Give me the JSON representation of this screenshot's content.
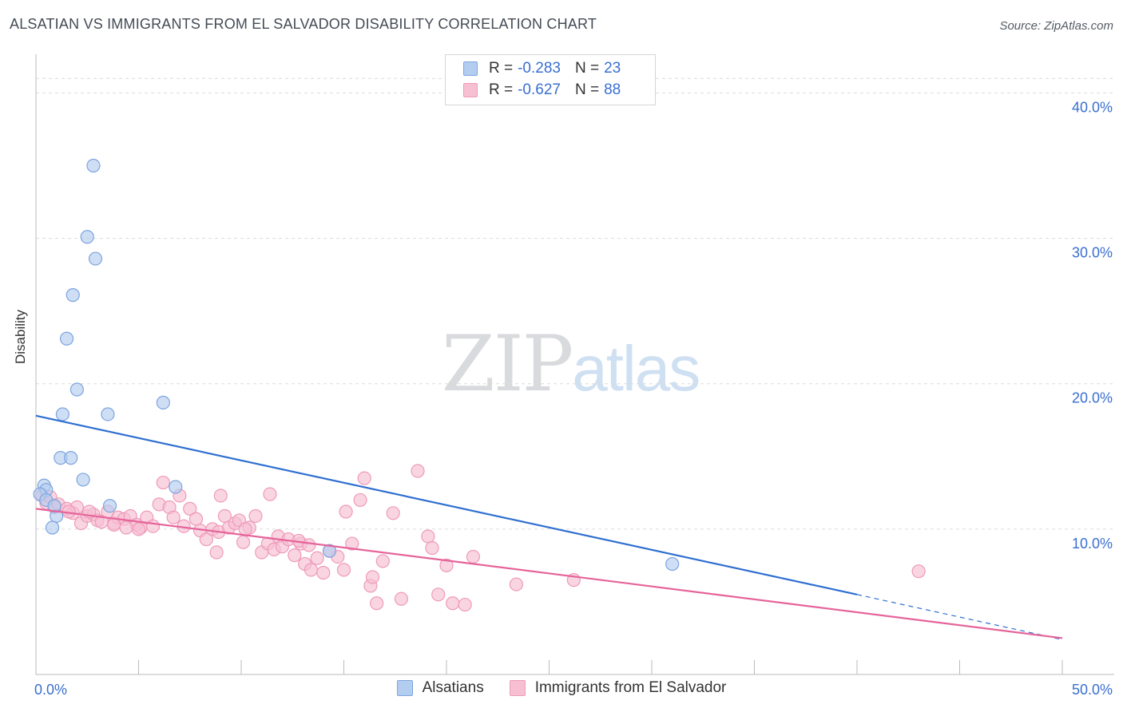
{
  "title": "ALSATIAN VS IMMIGRANTS FROM EL SALVADOR DISABILITY CORRELATION CHART",
  "source": "Source: ZipAtlas.com",
  "watermark": {
    "zip": "ZIP",
    "atlas": "atlas"
  },
  "legend": {
    "series1": {
      "r_label": "R =",
      "r_value": "-0.283",
      "n_label": "N =",
      "n_value": "23"
    },
    "series2": {
      "r_label": "R =",
      "r_value": "-0.627",
      "n_label": "N =",
      "n_value": "88"
    }
  },
  "bottom_legend": {
    "series1": "Alsatians",
    "series2": "Immigrants from El Salvador"
  },
  "colors": {
    "blue_fill": "#b3cdf0",
    "blue_stroke": "#7da5dd",
    "blue_line": "#2f6fd0",
    "pink_fill": "#f6bfd2",
    "pink_stroke": "#ef9ab8",
    "pink_line": "#e5649a",
    "tick_label": "#3a6fd0",
    "grid": "#dcdcdc"
  },
  "chart_data": {
    "type": "scatter",
    "title": "ALSATIAN VS IMMIGRANTS FROM EL SALVADOR DISABILITY CORRELATION CHART",
    "xlabel": "",
    "ylabel": "Disability",
    "xlim": [
      0,
      50
    ],
    "ylim": [
      0,
      42
    ],
    "x_tick_labels": [
      {
        "value": 0,
        "label": "0.0%"
      },
      {
        "value": 50,
        "label": "50.0%"
      }
    ],
    "y_tick_labels": [
      {
        "value": 10,
        "label": "10.0%"
      },
      {
        "value": 20,
        "label": "20.0%"
      },
      {
        "value": 30,
        "label": "30.0%"
      },
      {
        "value": 40,
        "label": "40.0%"
      }
    ],
    "series": [
      {
        "name": "Alsatians",
        "points": [
          [
            2.8,
            35.0
          ],
          [
            2.5,
            30.1
          ],
          [
            2.9,
            28.6
          ],
          [
            1.8,
            26.1
          ],
          [
            1.5,
            23.1
          ],
          [
            2.0,
            19.6
          ],
          [
            6.2,
            18.7
          ],
          [
            1.3,
            17.9
          ],
          [
            3.5,
            17.9
          ],
          [
            1.2,
            14.9
          ],
          [
            1.7,
            14.9
          ],
          [
            2.3,
            13.4
          ],
          [
            0.4,
            13.0
          ],
          [
            0.5,
            12.7
          ],
          [
            6.8,
            12.9
          ],
          [
            3.6,
            11.6
          ],
          [
            1.0,
            10.9
          ],
          [
            0.8,
            10.1
          ],
          [
            14.3,
            8.5
          ],
          [
            31.0,
            7.6
          ],
          [
            0.2,
            12.4
          ],
          [
            0.5,
            12.0
          ],
          [
            0.9,
            11.6
          ]
        ],
        "trend": {
          "x": [
            0,
            40
          ],
          "y": [
            17.8,
            5.5
          ],
          "dashed_extension": {
            "x": [
              40,
              50
            ],
            "y": [
              5.5,
              2.4
            ]
          }
        }
      },
      {
        "name": "Immigrants from El Salvador",
        "points": [
          [
            0.3,
            12.3
          ],
          [
            0.5,
            11.8
          ],
          [
            0.7,
            12.2
          ],
          [
            0.9,
            11.5
          ],
          [
            1.1,
            11.7
          ],
          [
            1.5,
            11.4
          ],
          [
            1.8,
            11.1
          ],
          [
            2.0,
            11.5
          ],
          [
            2.2,
            10.4
          ],
          [
            2.5,
            10.9
          ],
          [
            2.8,
            11.0
          ],
          [
            3.0,
            10.6
          ],
          [
            3.2,
            10.5
          ],
          [
            3.5,
            11.2
          ],
          [
            3.8,
            10.4
          ],
          [
            4.0,
            10.8
          ],
          [
            4.3,
            10.7
          ],
          [
            4.6,
            10.9
          ],
          [
            4.9,
            10.3
          ],
          [
            5.1,
            10.1
          ],
          [
            5.4,
            10.8
          ],
          [
            5.7,
            10.2
          ],
          [
            6.0,
            11.7
          ],
          [
            6.2,
            13.2
          ],
          [
            6.5,
            11.5
          ],
          [
            6.7,
            10.8
          ],
          [
            7.0,
            12.3
          ],
          [
            7.2,
            10.2
          ],
          [
            7.5,
            11.4
          ],
          [
            7.8,
            10.7
          ],
          [
            8.0,
            9.9
          ],
          [
            8.3,
            9.3
          ],
          [
            8.6,
            10.0
          ],
          [
            8.9,
            9.8
          ],
          [
            9.2,
            10.9
          ],
          [
            9.4,
            10.1
          ],
          [
            9.7,
            10.4
          ],
          [
            9.9,
            10.6
          ],
          [
            10.1,
            9.1
          ],
          [
            10.4,
            10.1
          ],
          [
            10.7,
            10.9
          ],
          [
            11.0,
            8.4
          ],
          [
            11.3,
            9.0
          ],
          [
            11.6,
            8.6
          ],
          [
            11.8,
            9.5
          ],
          [
            12.0,
            8.8
          ],
          [
            12.3,
            9.3
          ],
          [
            12.6,
            8.2
          ],
          [
            12.9,
            9.0
          ],
          [
            13.1,
            7.6
          ],
          [
            13.4,
            7.2
          ],
          [
            13.7,
            8.0
          ],
          [
            14.0,
            7.0
          ],
          [
            14.3,
            8.5
          ],
          [
            14.7,
            8.1
          ],
          [
            15.0,
            7.2
          ],
          [
            15.4,
            9.0
          ],
          [
            15.8,
            12.0
          ],
          [
            16.0,
            13.5
          ],
          [
            16.3,
            6.1
          ],
          [
            16.6,
            4.9
          ],
          [
            16.9,
            7.8
          ],
          [
            17.4,
            11.1
          ],
          [
            17.8,
            5.2
          ],
          [
            18.6,
            14.0
          ],
          [
            19.1,
            9.5
          ],
          [
            19.3,
            8.7
          ],
          [
            19.6,
            5.5
          ],
          [
            20.0,
            7.5
          ],
          [
            20.3,
            4.9
          ],
          [
            20.9,
            4.8
          ],
          [
            21.3,
            8.1
          ],
          [
            23.4,
            6.2
          ],
          [
            26.2,
            6.5
          ],
          [
            43.0,
            7.1
          ],
          [
            5.0,
            10.0
          ],
          [
            2.6,
            11.2
          ],
          [
            4.4,
            10.1
          ],
          [
            8.8,
            8.4
          ],
          [
            10.2,
            10.0
          ],
          [
            12.8,
            9.2
          ],
          [
            15.1,
            11.2
          ],
          [
            11.4,
            12.4
          ],
          [
            9.0,
            12.3
          ],
          [
            16.4,
            6.7
          ],
          [
            13.3,
            8.9
          ],
          [
            3.8,
            10.3
          ],
          [
            1.6,
            11.2
          ]
        ],
        "trend": {
          "x": [
            0,
            50
          ],
          "y": [
            11.4,
            2.5
          ]
        }
      }
    ]
  }
}
